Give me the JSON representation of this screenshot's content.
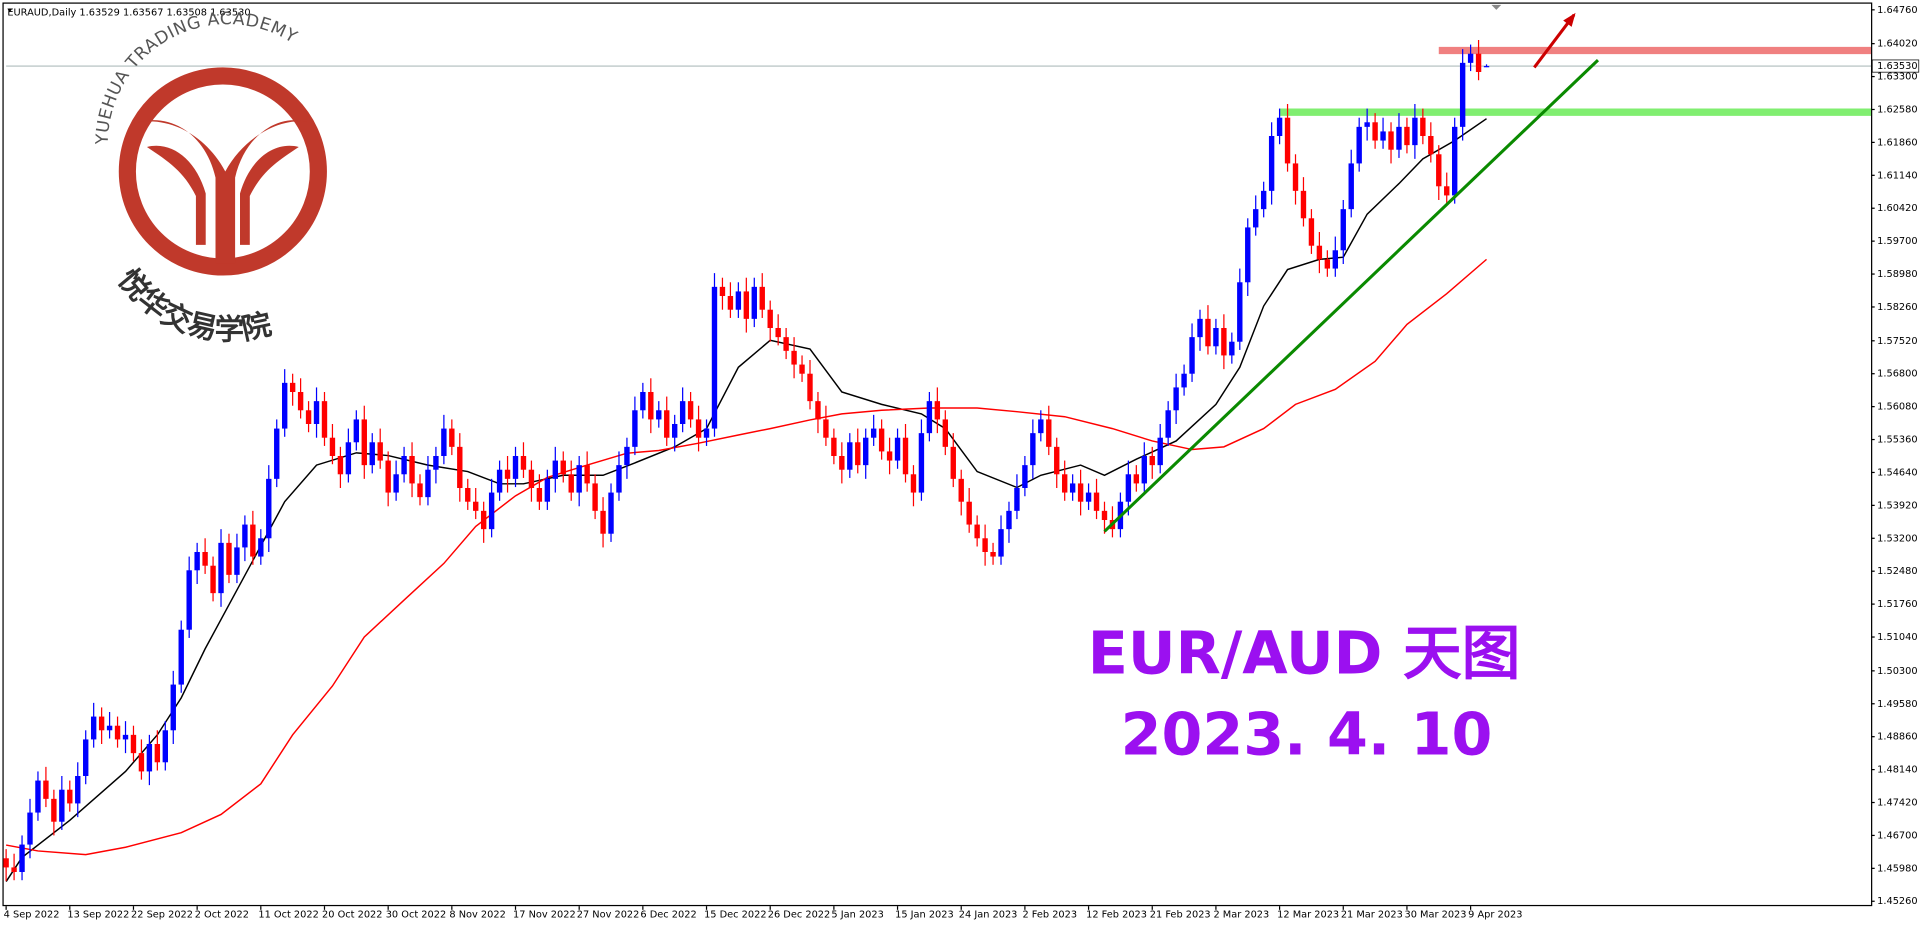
{
  "chart_data": {
    "type": "candlestick",
    "header": "EURAUD,Daily  1.63529 1.63567 1.63508 1.63530",
    "title": "EUR/AUD 天图",
    "subtitle": "2023. 4. 10",
    "title_color": "#9b10f0",
    "up_color": "#0000ff",
    "down_color": "#ff0000",
    "ylim": [
      1.4526,
      1.6476
    ],
    "xlim": [
      0,
      234
    ],
    "yticks": [
      {
        "value": 1.6476,
        "label": "1.64760"
      },
      {
        "value": 1.6402,
        "label": "1.64020"
      },
      {
        "value": 1.633,
        "label": "1.63300"
      },
      {
        "value": 1.6258,
        "label": "1.62580"
      },
      {
        "value": 1.6186,
        "label": "1.61860"
      },
      {
        "value": 1.6114,
        "label": "1.61140"
      },
      {
        "value": 1.6042,
        "label": "1.60420"
      },
      {
        "value": 1.597,
        "label": "1.59700"
      },
      {
        "value": 1.5898,
        "label": "1.58980"
      },
      {
        "value": 1.5826,
        "label": "1.58260"
      },
      {
        "value": 1.5752,
        "label": "1.57520"
      },
      {
        "value": 1.568,
        "label": "1.56800"
      },
      {
        "value": 1.5608,
        "label": "1.56080"
      },
      {
        "value": 1.5536,
        "label": "1.55360"
      },
      {
        "value": 1.5464,
        "label": "1.54640"
      },
      {
        "value": 1.5392,
        "label": "1.53920"
      },
      {
        "value": 1.532,
        "label": "1.53200"
      },
      {
        "value": 1.5248,
        "label": "1.52480"
      },
      {
        "value": 1.5176,
        "label": "1.51760"
      },
      {
        "value": 1.5104,
        "label": "1.51040"
      },
      {
        "value": 1.503,
        "label": "1.50300"
      },
      {
        "value": 1.4958,
        "label": "1.49580"
      },
      {
        "value": 1.4886,
        "label": "1.48860"
      },
      {
        "value": 1.4814,
        "label": "1.48140"
      },
      {
        "value": 1.4742,
        "label": "1.47420"
      },
      {
        "value": 1.467,
        "label": "1.46700"
      },
      {
        "value": 1.4598,
        "label": "1.45980"
      },
      {
        "value": 1.4526,
        "label": "1.45260"
      }
    ],
    "xticks": [
      {
        "value": 0,
        "label": "4 Sep 2022"
      },
      {
        "value": 8,
        "label": "13 Sep 2022"
      },
      {
        "value": 16,
        "label": "22 Sep 2022"
      },
      {
        "value": 24,
        "label": "2 Oct 2022"
      },
      {
        "value": 32,
        "label": "11 Oct 2022"
      },
      {
        "value": 40,
        "label": "20 Oct 2022"
      },
      {
        "value": 48,
        "label": "30 Oct 2022"
      },
      {
        "value": 56,
        "label": "8 Nov 2022"
      },
      {
        "value": 64,
        "label": "17 Nov 2022"
      },
      {
        "value": 72,
        "label": "27 Nov 2022"
      },
      {
        "value": 80,
        "label": "6 Dec 2022"
      },
      {
        "value": 88,
        "label": "15 Dec 2022"
      },
      {
        "value": 96,
        "label": "26 Dec 2022"
      },
      {
        "value": 104,
        "label": "5 Jan 2023"
      },
      {
        "value": 112,
        "label": "15 Jan 2023"
      },
      {
        "value": 120,
        "label": "24 Jan 2023"
      },
      {
        "value": 128,
        "label": "2 Feb 2023"
      },
      {
        "value": 136,
        "label": "12 Feb 2023"
      },
      {
        "value": 144,
        "label": "21 Feb 2023"
      },
      {
        "value": 152,
        "label": "2 Mar 2023"
      },
      {
        "value": 160,
        "label": "12 Mar 2023"
      },
      {
        "value": 168,
        "label": "21 Mar 2023"
      },
      {
        "value": 176,
        "label": "30 Mar 2023"
      },
      {
        "value": 184,
        "label": "9 Apr 2023"
      }
    ],
    "price_label": {
      "value": 1.6353,
      "label": "1.63530"
    },
    "open": [
      1.462,
      1.46,
      1.459,
      1.465,
      1.472,
      1.479,
      1.475,
      1.47,
      1.477,
      1.474,
      1.48,
      1.488,
      1.493,
      1.49,
      1.491,
      1.488,
      1.489,
      1.485,
      1.481,
      1.487,
      1.483,
      1.49,
      1.5,
      1.512,
      1.525,
      1.529,
      1.526,
      1.52,
      1.531,
      1.524,
      1.53,
      1.535,
      1.528,
      1.532,
      1.545,
      1.556,
      1.566,
      1.564,
      1.56,
      1.557,
      1.562,
      1.554,
      1.55,
      1.546,
      1.553,
      1.558,
      1.548,
      1.553,
      1.549,
      1.542,
      1.546,
      1.55,
      1.544,
      1.541,
      1.547,
      1.55,
      1.556,
      1.552,
      1.543,
      1.54,
      1.538,
      1.534,
      1.542,
      1.547,
      1.545,
      1.55,
      1.547,
      1.543,
      1.54,
      1.545,
      1.549,
      1.546,
      1.542,
      1.548,
      1.544,
      1.538,
      1.533,
      1.542,
      1.548,
      1.552,
      1.56,
      1.564,
      1.558,
      1.56,
      1.554,
      1.557,
      1.562,
      1.558,
      1.554,
      1.556,
      1.587,
      1.585,
      1.582,
      1.586,
      1.58,
      1.587,
      1.582,
      1.578,
      1.576,
      1.573,
      1.57,
      1.568,
      1.562,
      1.558,
      1.554,
      1.55,
      1.547,
      1.553,
      1.548,
      1.554,
      1.556,
      1.551,
      1.549,
      1.554,
      1.546,
      1.542,
      1.555,
      1.562,
      1.558,
      1.552,
      1.545,
      1.54,
      1.535,
      1.532,
      1.529,
      1.528,
      1.534,
      1.538,
      1.543,
      1.548,
      1.555,
      1.558,
      1.552,
      1.546,
      1.542,
      1.544,
      1.54,
      1.542,
      1.538,
      1.536,
      1.534,
      1.54,
      1.546,
      1.544,
      1.55,
      1.548,
      1.554,
      1.56,
      1.565,
      1.568,
      1.576,
      1.58,
      1.574,
      1.578,
      1.572,
      1.575,
      1.588,
      1.6,
      1.604,
      1.608,
      1.62,
      1.624,
      1.614,
      1.608,
      1.602,
      1.596,
      1.593,
      1.591,
      1.595,
      1.604,
      1.614,
      1.622,
      1.623,
      1.619,
      1.621,
      1.617,
      1.622,
      1.618,
      1.624,
      1.62,
      1.616,
      1.609,
      1.607,
      1.622,
      1.636,
      1.638,
      1.63529
    ],
    "high": [
      1.464,
      1.463,
      1.467,
      1.475,
      1.481,
      1.482,
      1.477,
      1.48,
      1.479,
      1.483,
      1.49,
      1.496,
      1.495,
      1.494,
      1.493,
      1.492,
      1.491,
      1.488,
      1.489,
      1.49,
      1.492,
      1.503,
      1.514,
      1.528,
      1.531,
      1.532,
      1.528,
      1.534,
      1.533,
      1.533,
      1.537,
      1.538,
      1.534,
      1.548,
      1.558,
      1.569,
      1.568,
      1.567,
      1.562,
      1.565,
      1.564,
      1.557,
      1.552,
      1.556,
      1.56,
      1.561,
      1.555,
      1.556,
      1.551,
      1.549,
      1.552,
      1.553,
      1.546,
      1.55,
      1.552,
      1.559,
      1.558,
      1.555,
      1.545,
      1.543,
      1.54,
      1.545,
      1.549,
      1.55,
      1.552,
      1.553,
      1.549,
      1.546,
      1.547,
      1.552,
      1.551,
      1.549,
      1.55,
      1.551,
      1.546,
      1.541,
      1.544,
      1.551,
      1.554,
      1.563,
      1.566,
      1.567,
      1.562,
      1.563,
      1.559,
      1.565,
      1.564,
      1.561,
      1.558,
      1.59,
      1.589,
      1.588,
      1.588,
      1.589,
      1.589,
      1.59,
      1.584,
      1.581,
      1.578,
      1.576,
      1.572,
      1.571,
      1.564,
      1.561,
      1.556,
      1.553,
      1.555,
      1.556,
      1.556,
      1.559,
      1.558,
      1.554,
      1.556,
      1.557,
      1.548,
      1.558,
      1.564,
      1.565,
      1.56,
      1.555,
      1.547,
      1.543,
      1.537,
      1.535,
      1.531,
      1.537,
      1.54,
      1.546,
      1.55,
      1.558,
      1.56,
      1.561,
      1.554,
      1.549,
      1.546,
      1.547,
      1.544,
      1.545,
      1.54,
      1.539,
      1.542,
      1.549,
      1.548,
      1.553,
      1.552,
      1.557,
      1.562,
      1.568,
      1.57,
      1.579,
      1.582,
      1.583,
      1.58,
      1.581,
      1.577,
      1.591,
      1.602,
      1.607,
      1.61,
      1.623,
      1.626,
      1.627,
      1.616,
      1.611,
      1.604,
      1.599,
      1.595,
      1.598,
      1.606,
      1.617,
      1.624,
      1.626,
      1.625,
      1.624,
      1.623,
      1.625,
      1.624,
      1.627,
      1.626,
      1.623,
      1.618,
      1.612,
      1.624,
      1.639,
      1.64,
      1.641,
      1.63567
    ],
    "low": [
      1.457,
      1.4572,
      1.4572,
      1.462,
      1.4702,
      1.4732,
      1.467,
      1.4682,
      1.4722,
      1.471,
      1.4782,
      1.4862,
      1.487,
      1.4882,
      1.4862,
      1.485,
      1.4832,
      1.4792,
      1.478,
      1.4812,
      1.4812,
      1.487,
      1.4982,
      1.5102,
      1.522,
      1.5242,
      1.5182,
      1.517,
      1.5222,
      1.5222,
      1.527,
      1.5262,
      1.5262,
      1.529,
      1.5432,
      1.5542,
      1.561,
      1.5582,
      1.5552,
      1.554,
      1.5522,
      1.5482,
      1.543,
      1.5442,
      1.5512,
      1.545,
      1.5462,
      1.5472,
      1.539,
      1.5402,
      1.5442,
      1.541,
      1.5392,
      1.5392,
      1.544,
      1.5482,
      1.5502,
      1.54,
      1.5382,
      1.5362,
      1.531,
      1.5322,
      1.5402,
      1.542,
      1.5432,
      1.5452,
      1.54,
      1.5382,
      1.5382,
      1.542,
      1.5442,
      1.5402,
      1.539,
      1.5422,
      1.5362,
      1.53,
      1.5312,
      1.5402,
      1.545,
      1.5502,
      1.5582,
      1.555,
      1.5562,
      1.5522,
      1.551,
      1.5552,
      1.5562,
      1.551,
      1.5522,
      1.5542,
      1.582,
      1.5802,
      1.5802,
      1.577,
      1.5782,
      1.5802,
      1.575,
      1.5742,
      1.5712,
      1.567,
      1.5662,
      1.5602,
      1.555,
      1.5522,
      1.5482,
      1.544,
      1.5452,
      1.5462,
      1.545,
      1.5522,
      1.5492,
      1.546,
      1.5472,
      1.5442,
      1.539,
      1.5402,
      1.5532,
      1.555,
      1.5502,
      1.5432,
      1.537,
      1.5332,
      1.5302,
      1.526,
      1.5262,
      1.5262,
      1.531,
      1.5362,
      1.5412,
      1.545,
      1.5532,
      1.5502,
      1.543,
      1.5402,
      1.5402,
      1.537,
      1.5382,
      1.5362,
      1.533,
      1.5322,
      1.5322,
      1.537,
      1.5422,
      1.5422,
      1.545,
      1.5462,
      1.5522,
      1.557,
      1.5632,
      1.5662,
      1.573,
      1.5722,
      1.5722,
      1.569,
      1.5702,
      1.5732,
      1.585,
      1.5982,
      1.6022,
      1.605,
      1.6182,
      1.6122,
      1.605,
      1.6002,
      1.5942,
      1.59,
      1.5892,
      1.5892,
      1.592,
      1.6022,
      1.6122,
      1.619,
      1.6172,
      1.6172,
      1.614,
      1.6152,
      1.6162,
      1.615,
      1.6182,
      1.6142,
      1.606,
      1.6052,
      1.6052,
      1.619,
      1.6342,
      1.6322,
      1.63508
    ],
    "close": [
      1.46,
      1.459,
      1.465,
      1.472,
      1.479,
      1.475,
      1.47,
      1.477,
      1.474,
      1.48,
      1.488,
      1.493,
      1.49,
      1.491,
      1.488,
      1.489,
      1.485,
      1.481,
      1.487,
      1.483,
      1.49,
      1.5,
      1.512,
      1.525,
      1.529,
      1.526,
      1.52,
      1.531,
      1.524,
      1.53,
      1.535,
      1.528,
      1.532,
      1.545,
      1.556,
      1.566,
      1.564,
      1.56,
      1.557,
      1.562,
      1.554,
      1.55,
      1.546,
      1.553,
      1.558,
      1.548,
      1.553,
      1.549,
      1.542,
      1.546,
      1.55,
      1.544,
      1.541,
      1.547,
      1.55,
      1.556,
      1.552,
      1.543,
      1.54,
      1.538,
      1.534,
      1.542,
      1.547,
      1.545,
      1.55,
      1.547,
      1.543,
      1.54,
      1.545,
      1.549,
      1.546,
      1.542,
      1.548,
      1.544,
      1.538,
      1.533,
      1.542,
      1.548,
      1.552,
      1.56,
      1.564,
      1.558,
      1.56,
      1.554,
      1.557,
      1.562,
      1.558,
      1.554,
      1.556,
      1.587,
      1.585,
      1.582,
      1.586,
      1.58,
      1.587,
      1.582,
      1.578,
      1.576,
      1.573,
      1.57,
      1.568,
      1.562,
      1.558,
      1.554,
      1.55,
      1.547,
      1.553,
      1.548,
      1.554,
      1.556,
      1.551,
      1.549,
      1.554,
      1.546,
      1.542,
      1.555,
      1.562,
      1.558,
      1.552,
      1.545,
      1.54,
      1.535,
      1.532,
      1.529,
      1.528,
      1.534,
      1.538,
      1.543,
      1.548,
      1.555,
      1.558,
      1.552,
      1.546,
      1.542,
      1.544,
      1.54,
      1.542,
      1.538,
      1.536,
      1.534,
      1.54,
      1.546,
      1.544,
      1.55,
      1.548,
      1.554,
      1.56,
      1.565,
      1.568,
      1.576,
      1.58,
      1.574,
      1.578,
      1.572,
      1.575,
      1.588,
      1.6,
      1.604,
      1.608,
      1.62,
      1.624,
      1.614,
      1.608,
      1.602,
      1.596,
      1.593,
      1.591,
      1.595,
      1.604,
      1.614,
      1.622,
      1.623,
      1.619,
      1.621,
      1.617,
      1.622,
      1.618,
      1.624,
      1.62,
      1.616,
      1.609,
      1.607,
      1.622,
      1.636,
      1.638,
      1.634,
      1.6353
    ],
    "lines": [
      {
        "color": "#000000",
        "x": [
          0,
          2,
          8,
          15,
          19,
          22,
          25,
          30,
          35,
          39,
          44,
          48,
          53,
          58,
          62,
          65,
          70,
          75,
          79,
          84,
          88,
          92,
          96,
          101,
          105,
          110,
          115,
          118,
          122,
          127,
          130,
          135,
          138,
          142,
          147,
          152,
          155,
          158,
          161,
          165,
          168,
          171,
          175,
          178,
          182,
          186
        ],
        "values": [
          1.4569,
          1.4622,
          1.4703,
          1.481,
          1.489,
          1.4971,
          1.5078,
          1.5239,
          1.54,
          1.548,
          1.5507,
          1.5501,
          1.548,
          1.5466,
          1.5439,
          1.5439,
          1.5458,
          1.5458,
          1.5485,
          1.552,
          1.556,
          1.5694,
          1.5753,
          1.5734,
          1.564,
          1.5613,
          1.5592,
          1.556,
          1.5466,
          1.5431,
          1.5458,
          1.548,
          1.5458,
          1.5493,
          1.5533,
          1.5613,
          1.5694,
          1.5828,
          1.5908,
          1.593,
          1.5935,
          1.6029,
          1.6096,
          1.615,
          1.619,
          1.6238
        ]
      },
      {
        "color": "#ff0000",
        "x": [
          0,
          4,
          10,
          15,
          22,
          27,
          32,
          36,
          41,
          45,
          50,
          55,
          59,
          64,
          68,
          73,
          78,
          82,
          87,
          92,
          96,
          101,
          105,
          110,
          116,
          122,
          127,
          133,
          139,
          144,
          149,
          153,
          158,
          162,
          167,
          172,
          176,
          181,
          186
        ],
        "values": [
          1.4649,
          1.4636,
          1.4628,
          1.4644,
          1.4676,
          1.4716,
          1.4783,
          1.489,
          1.4997,
          1.5104,
          1.5185,
          1.5265,
          1.5346,
          1.5413,
          1.5453,
          1.548,
          1.5506,
          1.5512,
          1.5528,
          1.5546,
          1.556,
          1.5579,
          1.5592,
          1.56,
          1.5605,
          1.5605,
          1.5597,
          1.5586,
          1.556,
          1.5533,
          1.5514,
          1.552,
          1.556,
          1.5613,
          1.5646,
          1.5707,
          1.5788,
          1.5855,
          1.593
        ]
      }
    ],
    "levels": [
      {
        "value": 1.6387,
        "from": 180,
        "color": "#f08080"
      },
      {
        "value": 1.6252,
        "from": 160,
        "color": "#80ee70"
      }
    ],
    "trendline": {
      "x": [
        138,
        200
      ],
      "values": [
        1.5335,
        1.6366
      ],
      "color": "#0a8a00"
    },
    "arrow": {
      "x": [
        192,
        197
      ],
      "values": [
        1.635,
        1.6465
      ],
      "color": "#cc0000"
    }
  },
  "logo": {
    "name_en": "YUEHUA TRADING ACADEMY",
    "name_cn": "悦华交易学院"
  }
}
